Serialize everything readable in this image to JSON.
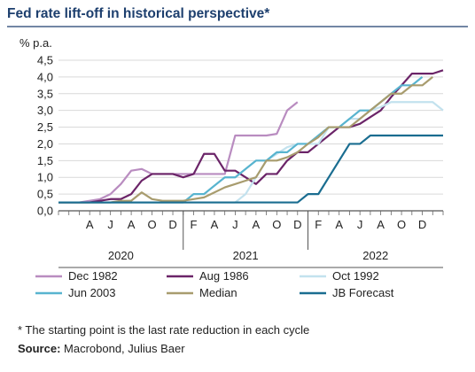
{
  "chart_data": {
    "type": "line",
    "title": "Fed rate lift-off in historical perspective*",
    "ylabel": "% p.a.",
    "ylim": [
      0,
      4.5
    ],
    "yticks": [
      "0,0",
      "0,5",
      "1,0",
      "1,5",
      "2,0",
      "2,5",
      "3,0",
      "3,5",
      "4,0",
      "4,5"
    ],
    "x_month_labels": [
      "A",
      "J",
      "A",
      "O",
      "D",
      "F",
      "A",
      "J",
      "A",
      "O",
      "D",
      "F",
      "A",
      "J",
      "A",
      "O",
      "D"
    ],
    "years": [
      "2020",
      "2021",
      "2022"
    ],
    "grid": true,
    "legend_position": "bottom",
    "series": [
      {
        "name": "Dec 1982",
        "color": "#b98cc0",
        "points": [
          [
            0,
            0.25
          ],
          [
            1,
            0.25
          ],
          [
            2,
            0.25
          ],
          [
            3,
            0.3
          ],
          [
            4,
            0.35
          ],
          [
            5,
            0.5
          ],
          [
            6,
            0.8
          ],
          [
            7,
            1.2
          ],
          [
            8,
            1.25
          ],
          [
            9,
            1.1
          ],
          [
            10,
            1.1
          ],
          [
            11,
            1.1
          ],
          [
            12,
            1.1
          ],
          [
            13,
            1.1
          ],
          [
            14,
            1.1
          ],
          [
            15,
            1.1
          ],
          [
            16,
            1.1
          ],
          [
            17,
            2.25
          ],
          [
            18,
            2.25
          ],
          [
            19,
            2.25
          ],
          [
            20,
            2.25
          ],
          [
            21,
            2.3
          ],
          [
            22,
            3.0
          ],
          [
            23,
            3.25
          ]
        ]
      },
      {
        "name": "Aug 1986",
        "color": "#6b2468",
        "points": [
          [
            0,
            0.25
          ],
          [
            1,
            0.25
          ],
          [
            2,
            0.25
          ],
          [
            3,
            0.25
          ],
          [
            4,
            0.3
          ],
          [
            5,
            0.35
          ],
          [
            6,
            0.35
          ],
          [
            7,
            0.5
          ],
          [
            8,
            0.9
          ],
          [
            9,
            1.1
          ],
          [
            10,
            1.1
          ],
          [
            11,
            1.1
          ],
          [
            12,
            1.0
          ],
          [
            13,
            1.1
          ],
          [
            14,
            1.7
          ],
          [
            15,
            1.7
          ],
          [
            16,
            1.2
          ],
          [
            17,
            1.2
          ],
          [
            18,
            1.0
          ],
          [
            19,
            0.8
          ],
          [
            20,
            1.1
          ],
          [
            21,
            1.1
          ],
          [
            22,
            1.5
          ],
          [
            23,
            1.75
          ],
          [
            24,
            1.75
          ],
          [
            25,
            2.0
          ],
          [
            26,
            2.25
          ],
          [
            27,
            2.5
          ],
          [
            28,
            2.5
          ],
          [
            29,
            2.6
          ],
          [
            30,
            2.8
          ],
          [
            31,
            3.0
          ],
          [
            32,
            3.4
          ],
          [
            33,
            3.75
          ],
          [
            34,
            4.1
          ],
          [
            35,
            4.1
          ],
          [
            36,
            4.1
          ],
          [
            37,
            4.2
          ]
        ]
      },
      {
        "name": "Oct 1992",
        "color": "#c3e2ee",
        "points": [
          [
            0,
            0.25
          ],
          [
            1,
            0.25
          ],
          [
            2,
            0.25
          ],
          [
            3,
            0.25
          ],
          [
            4,
            0.25
          ],
          [
            5,
            0.25
          ],
          [
            6,
            0.25
          ],
          [
            7,
            0.25
          ],
          [
            8,
            0.25
          ],
          [
            9,
            0.25
          ],
          [
            10,
            0.25
          ],
          [
            11,
            0.25
          ],
          [
            12,
            0.25
          ],
          [
            13,
            0.25
          ],
          [
            14,
            0.25
          ],
          [
            15,
            0.25
          ],
          [
            16,
            0.25
          ],
          [
            17,
            0.25
          ],
          [
            18,
            0.5
          ],
          [
            19,
            1.0
          ],
          [
            20,
            1.5
          ],
          [
            21,
            1.7
          ],
          [
            22,
            1.9
          ],
          [
            23,
            2.0
          ],
          [
            24,
            2.0
          ],
          [
            25,
            2.0
          ],
          [
            26,
            2.5
          ],
          [
            27,
            2.5
          ],
          [
            28,
            2.75
          ],
          [
            29,
            2.75
          ],
          [
            30,
            3.0
          ],
          [
            31,
            3.1
          ],
          [
            32,
            3.25
          ],
          [
            33,
            3.25
          ],
          [
            34,
            3.25
          ],
          [
            35,
            3.25
          ],
          [
            36,
            3.25
          ],
          [
            37,
            3.0
          ]
        ]
      },
      {
        "name": "Jun 2003",
        "color": "#58b4cf",
        "points": [
          [
            0,
            0.25
          ],
          [
            1,
            0.25
          ],
          [
            2,
            0.25
          ],
          [
            3,
            0.25
          ],
          [
            4,
            0.25
          ],
          [
            5,
            0.25
          ],
          [
            6,
            0.25
          ],
          [
            7,
            0.25
          ],
          [
            8,
            0.25
          ],
          [
            9,
            0.25
          ],
          [
            10,
            0.25
          ],
          [
            11,
            0.25
          ],
          [
            12,
            0.25
          ],
          [
            13,
            0.5
          ],
          [
            14,
            0.5
          ],
          [
            15,
            0.75
          ],
          [
            16,
            1.0
          ],
          [
            17,
            1.0
          ],
          [
            18,
            1.25
          ],
          [
            19,
            1.5
          ],
          [
            20,
            1.5
          ],
          [
            21,
            1.75
          ],
          [
            22,
            1.75
          ],
          [
            23,
            2.0
          ],
          [
            24,
            2.0
          ],
          [
            25,
            2.25
          ],
          [
            26,
            2.5
          ],
          [
            27,
            2.5
          ],
          [
            28,
            2.75
          ],
          [
            29,
            3.0
          ],
          [
            30,
            3.0
          ],
          [
            31,
            3.25
          ],
          [
            32,
            3.5
          ],
          [
            33,
            3.75
          ],
          [
            34,
            3.75
          ],
          [
            35,
            4.0
          ]
        ]
      },
      {
        "name": "Median",
        "color": "#a89c6e",
        "points": [
          [
            0,
            0.25
          ],
          [
            1,
            0.25
          ],
          [
            2,
            0.25
          ],
          [
            3,
            0.25
          ],
          [
            4,
            0.25
          ],
          [
            5,
            0.25
          ],
          [
            6,
            0.3
          ],
          [
            7,
            0.3
          ],
          [
            8,
            0.55
          ],
          [
            9,
            0.35
          ],
          [
            10,
            0.3
          ],
          [
            11,
            0.3
          ],
          [
            12,
            0.3
          ],
          [
            13,
            0.35
          ],
          [
            14,
            0.4
          ],
          [
            15,
            0.55
          ],
          [
            16,
            0.7
          ],
          [
            17,
            0.8
          ],
          [
            18,
            0.9
          ],
          [
            19,
            1.0
          ],
          [
            20,
            1.5
          ],
          [
            21,
            1.5
          ],
          [
            22,
            1.6
          ],
          [
            23,
            1.75
          ],
          [
            24,
            2.0
          ],
          [
            25,
            2.2
          ],
          [
            26,
            2.5
          ],
          [
            27,
            2.5
          ],
          [
            28,
            2.5
          ],
          [
            29,
            2.75
          ],
          [
            30,
            3.0
          ],
          [
            31,
            3.25
          ],
          [
            32,
            3.5
          ],
          [
            33,
            3.5
          ],
          [
            34,
            3.75
          ],
          [
            35,
            3.75
          ],
          [
            36,
            4.0
          ]
        ]
      },
      {
        "name": "JB Forecast",
        "color": "#1a6d90",
        "points": [
          [
            0,
            0.25
          ],
          [
            1,
            0.25
          ],
          [
            2,
            0.25
          ],
          [
            3,
            0.25
          ],
          [
            4,
            0.25
          ],
          [
            5,
            0.25
          ],
          [
            6,
            0.25
          ],
          [
            7,
            0.25
          ],
          [
            8,
            0.25
          ],
          [
            9,
            0.25
          ],
          [
            10,
            0.25
          ],
          [
            11,
            0.25
          ],
          [
            12,
            0.25
          ],
          [
            13,
            0.25
          ],
          [
            14,
            0.25
          ],
          [
            15,
            0.25
          ],
          [
            16,
            0.25
          ],
          [
            17,
            0.25
          ],
          [
            18,
            0.25
          ],
          [
            19,
            0.25
          ],
          [
            20,
            0.25
          ],
          [
            21,
            0.25
          ],
          [
            22,
            0.25
          ],
          [
            23,
            0.25
          ],
          [
            24,
            0.5
          ],
          [
            25,
            0.5
          ],
          [
            26,
            1.0
          ],
          [
            27,
            1.5
          ],
          [
            28,
            2.0
          ],
          [
            29,
            2.0
          ],
          [
            30,
            2.25
          ],
          [
            31,
            2.25
          ],
          [
            32,
            2.25
          ],
          [
            33,
            2.25
          ],
          [
            34,
            2.25
          ],
          [
            35,
            2.25
          ],
          [
            36,
            2.25
          ],
          [
            37,
            2.25
          ]
        ]
      }
    ]
  },
  "footnote": "* The starting point is the last rate reduction in each cycle",
  "source": {
    "label": "Source:",
    "text": " Macrobond, Julius Baer"
  }
}
